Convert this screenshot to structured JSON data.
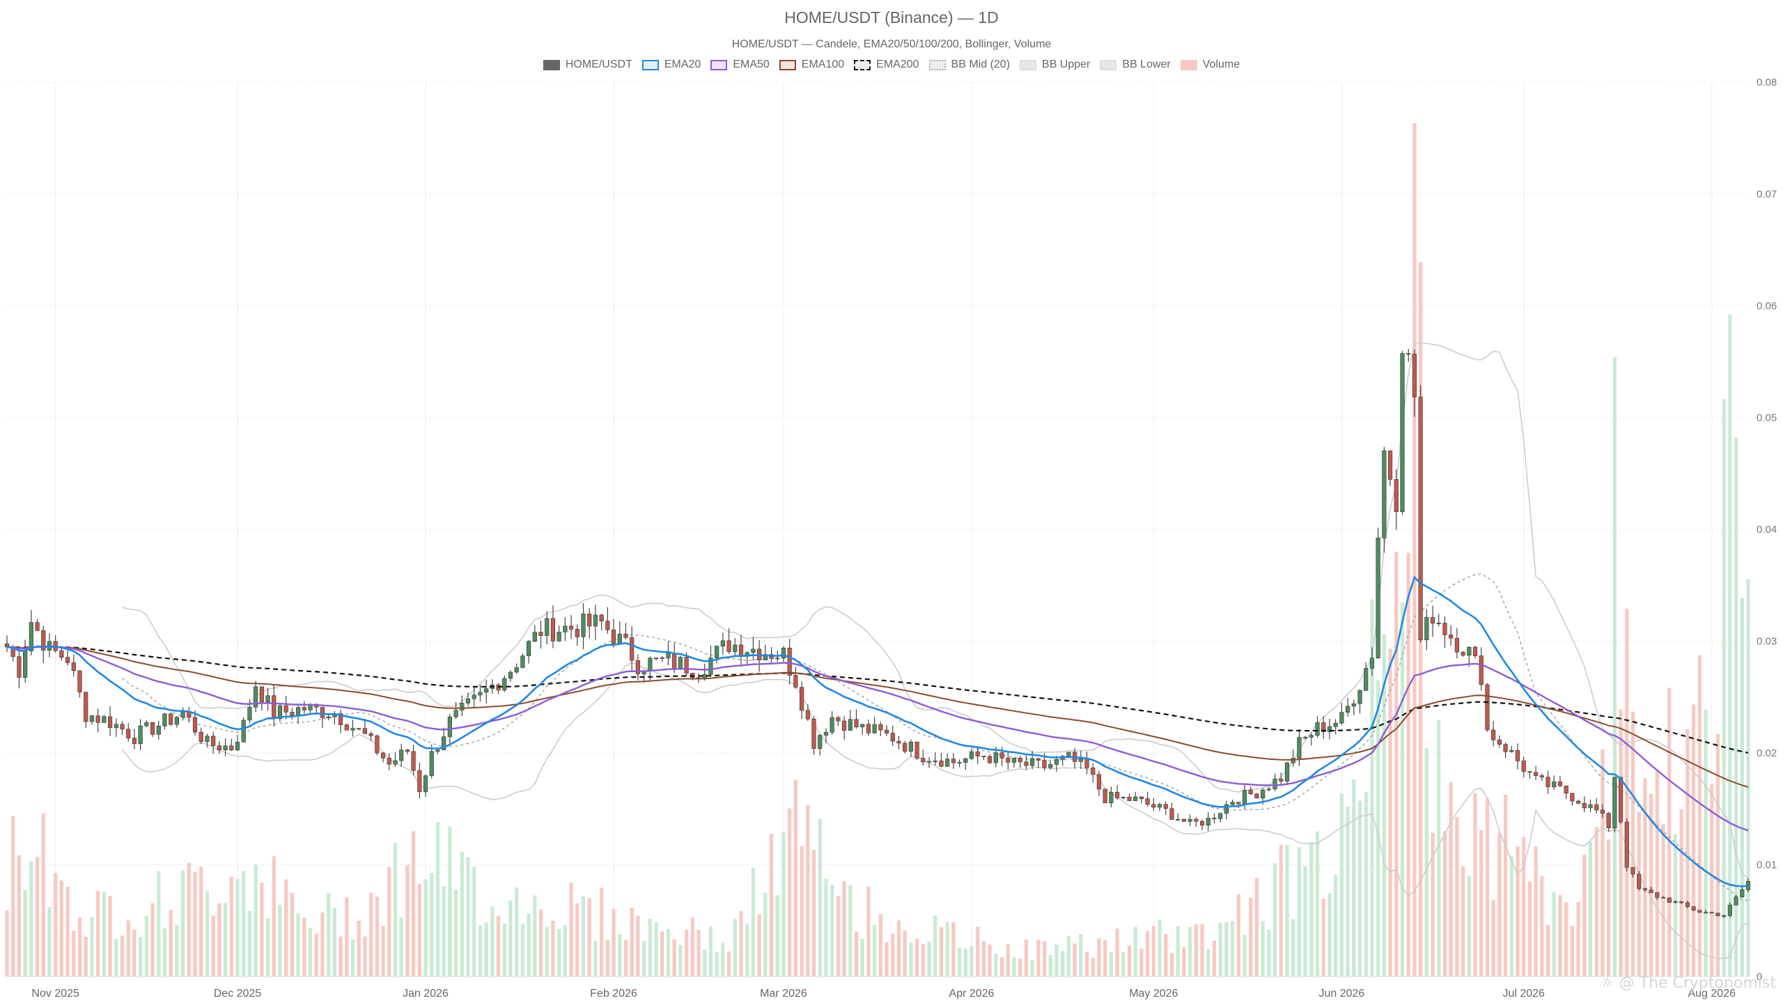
{
  "chart_data": {
    "type": "candlestick",
    "title": "HOME/USDT (Binance) — 1D",
    "subtitle": "HOME/USDT — Candele, EMA20/50/100/200, Bollinger, Volume",
    "legend": [
      {
        "name": "HOME/USDT",
        "color": "#666666",
        "fill": "#666666",
        "style": "solid"
      },
      {
        "name": "EMA20",
        "color": "#1e88e5",
        "fill": "#e3f0fb",
        "style": "solid"
      },
      {
        "name": "EMA50",
        "color": "#8e5bd8",
        "fill": "#eee5fa",
        "style": "solid"
      },
      {
        "name": "EMA100",
        "color": "#8b4a2b",
        "fill": "#f1e7e1",
        "style": "solid"
      },
      {
        "name": "EMA200",
        "color": "#111111",
        "fill": "#ededed",
        "style": "dashed"
      },
      {
        "name": "BB Mid (20)",
        "color": "#aaaaaa",
        "fill": "#ededed",
        "style": "dotted"
      },
      {
        "name": "BB Upper",
        "color": "#dddddd",
        "fill": "#e6e6e6",
        "style": "solid"
      },
      {
        "name": "BB Lower",
        "color": "#dddddd",
        "fill": "#e6e6e6",
        "style": "solid"
      },
      {
        "name": "Volume",
        "color": "#f7c9c2",
        "fill": "#f7c9c2",
        "style": "solid"
      }
    ],
    "x_axis": {
      "ticks": [
        "Nov 2025",
        "Dec 2025",
        "Jan 2026",
        "Feb 2026",
        "Mar 2026",
        "Apr 2026",
        "May 2026",
        "Jun 2026",
        "Jul 2026",
        "Aug 2026"
      ],
      "tick_dates": [
        "2025-11-01",
        "2025-12-01",
        "2026-01-01",
        "2026-02-01",
        "2026-03-01",
        "2026-04-01",
        "2026-05-01",
        "2026-06-01",
        "2026-07-01",
        "2026-08-01"
      ],
      "start": "2025-10-24",
      "end": "2026-08-07"
    },
    "y_axis": {
      "position": "right",
      "ticks": [
        "0",
        "0.01",
        "0.02",
        "0.03",
        "0.04",
        "0.05",
        "0.06",
        "0.07",
        "0.08"
      ],
      "min": 0,
      "max": 0.08
    },
    "grid": true,
    "colors": {
      "up": "#4e8c5f",
      "down": "#c0594c",
      "vol_up": "#c9ead4",
      "vol_down": "#f7c9c2"
    },
    "price_anchors": [
      [
        "2025-10-24",
        0.0295
      ],
      [
        "2025-10-26",
        0.0275
      ],
      [
        "2025-10-28",
        0.0318
      ],
      [
        "2025-10-31",
        0.0292
      ],
      [
        "2025-11-03",
        0.0285
      ],
      [
        "2025-11-06",
        0.0235
      ],
      [
        "2025-11-10",
        0.0228
      ],
      [
        "2025-11-14",
        0.0215
      ],
      [
        "2025-11-18",
        0.0225
      ],
      [
        "2025-11-22",
        0.0236
      ],
      [
        "2025-11-26",
        0.0208
      ],
      [
        "2025-11-30",
        0.0205
      ],
      [
        "2025-12-02",
        0.0225
      ],
      [
        "2025-12-04",
        0.0262
      ],
      [
        "2025-12-07",
        0.0235
      ],
      [
        "2025-12-12",
        0.024
      ],
      [
        "2025-12-17",
        0.0236
      ],
      [
        "2025-12-22",
        0.0215
      ],
      [
        "2025-12-26",
        0.019
      ],
      [
        "2025-12-29",
        0.0202
      ],
      [
        "2025-12-31",
        0.0168
      ],
      [
        "2026-01-02",
        0.0198
      ],
      [
        "2026-01-05",
        0.0228
      ],
      [
        "2026-01-10",
        0.025
      ],
      [
        "2026-01-15",
        0.0275
      ],
      [
        "2026-01-20",
        0.031
      ],
      [
        "2026-01-25",
        0.0312
      ],
      [
        "2026-01-30",
        0.0316
      ],
      [
        "2026-02-03",
        0.0295
      ],
      [
        "2026-02-05",
        0.028
      ],
      [
        "2026-02-10",
        0.0282
      ],
      [
        "2026-02-15",
        0.0275
      ],
      [
        "2026-02-20",
        0.0298
      ],
      [
        "2026-02-25",
        0.0292
      ],
      [
        "2026-03-01",
        0.0288
      ],
      [
        "2026-03-03",
        0.0265
      ],
      [
        "2026-03-06",
        0.021
      ],
      [
        "2026-03-09",
        0.0232
      ],
      [
        "2026-03-14",
        0.0222
      ],
      [
        "2026-03-19",
        0.0214
      ],
      [
        "2026-03-24",
        0.0198
      ],
      [
        "2026-03-29",
        0.0192
      ],
      [
        "2026-04-03",
        0.0198
      ],
      [
        "2026-04-08",
        0.019
      ],
      [
        "2026-04-13",
        0.0188
      ],
      [
        "2026-04-17",
        0.0195
      ],
      [
        "2026-04-20",
        0.0185
      ],
      [
        "2026-04-23",
        0.016
      ],
      [
        "2026-04-28",
        0.0158
      ],
      [
        "2026-05-03",
        0.0148
      ],
      [
        "2026-05-07",
        0.0136
      ],
      [
        "2026-05-10",
        0.014
      ],
      [
        "2026-05-14",
        0.0158
      ],
      [
        "2026-05-18",
        0.0165
      ],
      [
        "2026-05-22",
        0.0178
      ],
      [
        "2026-05-25",
        0.0208
      ],
      [
        "2026-05-28",
        0.0222
      ],
      [
        "2026-06-01",
        0.023
      ],
      [
        "2026-06-04",
        0.0262
      ],
      [
        "2026-06-06",
        0.029
      ],
      [
        "2026-06-07",
        0.0395
      ],
      [
        "2026-06-08",
        0.047
      ],
      [
        "2026-06-10",
        0.043
      ],
      [
        "2026-06-11",
        0.0575
      ],
      [
        "2026-06-13",
        0.052
      ],
      [
        "2026-06-14",
        0.03
      ],
      [
        "2026-06-16",
        0.0325
      ],
      [
        "2026-06-19",
        0.0305
      ],
      [
        "2026-06-22",
        0.029
      ],
      [
        "2026-06-24",
        0.027
      ],
      [
        "2026-06-25",
        0.022
      ],
      [
        "2026-06-28",
        0.0205
      ],
      [
        "2026-07-03",
        0.0175
      ],
      [
        "2026-07-08",
        0.0165
      ],
      [
        "2026-07-13",
        0.0148
      ],
      [
        "2026-07-15",
        0.0135
      ],
      [
        "2026-07-16",
        0.018
      ],
      [
        "2026-07-18",
        0.01
      ],
      [
        "2026-07-20",
        0.0078
      ],
      [
        "2026-07-25",
        0.0068
      ],
      [
        "2026-07-30",
        0.0058
      ],
      [
        "2026-08-03",
        0.0055
      ],
      [
        "2026-08-05",
        0.007
      ],
      [
        "2026-08-07",
        0.0085
      ]
    ],
    "volume_anchors": [
      [
        "2025-10-24",
        0.12
      ],
      [
        "2025-10-28",
        0.17
      ],
      [
        "2025-11-05",
        0.07
      ],
      [
        "2025-11-15",
        0.08
      ],
      [
        "2025-11-25",
        0.1
      ],
      [
        "2025-12-03",
        0.13
      ],
      [
        "2025-12-12",
        0.06
      ],
      [
        "2025-12-22",
        0.08
      ],
      [
        "2025-12-31",
        0.14
      ],
      [
        "2026-01-12",
        0.09
      ],
      [
        "2026-01-25",
        0.08
      ],
      [
        "2026-02-05",
        0.06
      ],
      [
        "2026-02-20",
        0.04
      ],
      [
        "2026-03-03",
        0.17
      ],
      [
        "2026-03-12",
        0.08
      ],
      [
        "2026-03-25",
        0.05
      ],
      [
        "2026-04-10",
        0.03
      ],
      [
        "2026-04-25",
        0.04
      ],
      [
        "2026-05-10",
        0.05
      ],
      [
        "2026-05-25",
        0.12
      ],
      [
        "2026-06-01",
        0.15
      ],
      [
        "2026-06-05",
        0.3
      ],
      [
        "2026-06-09",
        0.55
      ],
      [
        "2026-06-11",
        0.65
      ],
      [
        "2026-06-13",
        0.95
      ],
      [
        "2026-06-15",
        0.22
      ],
      [
        "2026-06-20",
        0.18
      ],
      [
        "2026-06-28",
        0.15
      ],
      [
        "2026-07-08",
        0.07
      ],
      [
        "2026-07-15",
        0.2
      ],
      [
        "2026-07-16",
        0.55
      ],
      [
        "2026-07-18",
        0.45
      ],
      [
        "2026-07-20",
        0.28
      ],
      [
        "2026-07-26",
        0.22
      ],
      [
        "2026-08-01",
        0.3
      ],
      [
        "2026-08-04",
        0.55
      ],
      [
        "2026-08-06",
        0.7
      ]
    ]
  },
  "watermark": "The Cryptonomist"
}
